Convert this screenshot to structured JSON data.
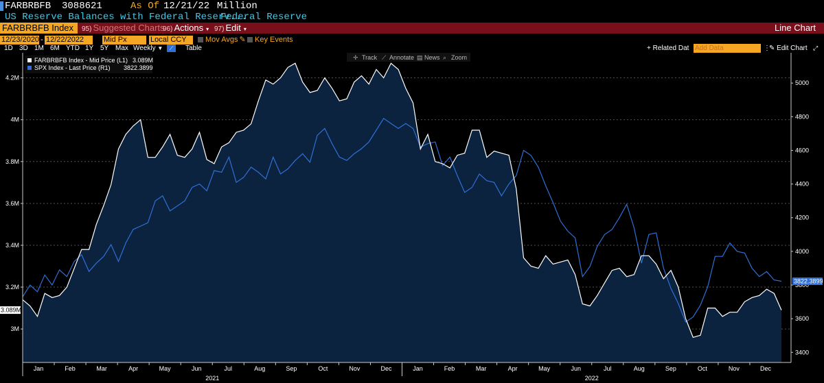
{
  "header": {
    "ticker": "FARBRBFB",
    "last_value": "3088621",
    "as_of_label": "As Of",
    "as_of_date": "12/21/22",
    "unit": "Million",
    "description": "US Reserve Balances with Federal Reserv...",
    "source": "Federal Reserve"
  },
  "toolbar": {
    "security": "FARBRBFB Index",
    "suggested_num": "95)",
    "suggested_label": "Suggested Charts",
    "actions_num": "96)",
    "actions_label": "Actions",
    "edit_num": "97)",
    "edit_label": "Edit",
    "chart_type": "Line Chart"
  },
  "settings": {
    "start_date": "12/23/2020",
    "end_date": "12/22/2022",
    "price_field": "Mid Px",
    "currency": "Local CCY",
    "mov_avgs": "Mov Avgs",
    "key_events": "Key Events"
  },
  "ranges": {
    "items": [
      "1D",
      "3D",
      "1M",
      "6M",
      "YTD",
      "1Y",
      "5Y",
      "Max"
    ],
    "period": "Weekly",
    "table": "Table",
    "related_data": "+ Related Dat",
    "add_data_placeholder": "Add Data",
    "edit_chart": "Edit Chart"
  },
  "chart_tools": {
    "track": "Track",
    "annotate": "Annotate",
    "news": "News",
    "zoom": "Zoom"
  },
  "colors": {
    "series1": "#ffffff",
    "series2": "#2f6fd6",
    "area_fill": "#0c2340",
    "redbar": "#7a0f1c",
    "orange": "#f5a623"
  },
  "chart_data": {
    "type": "line",
    "title": "US Reserve Balances with Federal Reserve",
    "x_range": [
      "2020-12-23",
      "2022-12-22"
    ],
    "x_month_labels": [
      "Jan",
      "Feb",
      "Mar",
      "Apr",
      "May",
      "Jun",
      "Jul",
      "Aug",
      "Sep",
      "Oct",
      "Nov",
      "Dec",
      "Jan",
      "Feb",
      "Mar",
      "Apr",
      "May",
      "Jun",
      "Jul",
      "Aug",
      "Sep",
      "Oct",
      "Nov",
      "Dec"
    ],
    "x_year_labels": [
      "2021",
      "2022"
    ],
    "left_axis": {
      "ticks": [
        "3M",
        "3.2M",
        "3.4M",
        "3.6M",
        "3.8M",
        "4M",
        "4.2M"
      ],
      "tick_values": [
        3.0,
        3.2,
        3.4,
        3.6,
        3.8,
        4.0,
        4.2
      ],
      "ylim": [
        2.84,
        4.32
      ]
    },
    "right_axis": {
      "ticks": [
        "3400",
        "3600",
        "3800",
        "4000",
        "4200",
        "4400",
        "4600",
        "4800",
        "5000"
      ],
      "tick_values": [
        3400,
        3600,
        3800,
        4000,
        4200,
        4400,
        4600,
        4800,
        5000
      ],
      "ylim": [
        3340,
        5180
      ]
    },
    "series": [
      {
        "name": "FARBRBFB Index - Mid Price (L1)",
        "last": "3.089M",
        "axis": "left",
        "values": [
          3.14,
          3.11,
          3.06,
          3.17,
          3.15,
          3.16,
          3.2,
          3.29,
          3.38,
          3.38,
          3.5,
          3.59,
          3.69,
          3.86,
          3.93,
          3.97,
          4.0,
          3.82,
          3.82,
          3.87,
          3.93,
          3.83,
          3.82,
          3.86,
          3.94,
          3.81,
          3.79,
          3.87,
          3.89,
          3.94,
          3.95,
          3.98,
          4.09,
          4.19,
          4.17,
          4.2,
          4.25,
          4.27,
          4.18,
          4.13,
          4.14,
          4.2,
          4.15,
          4.09,
          4.1,
          4.18,
          4.21,
          4.17,
          4.24,
          4.2,
          4.27,
          4.24,
          4.15,
          4.08,
          3.86,
          3.93,
          3.8,
          3.79,
          3.77,
          3.83,
          3.84,
          3.95,
          3.95,
          3.82,
          3.85,
          3.84,
          3.83,
          3.67,
          3.34,
          3.3,
          3.29,
          3.35,
          3.31,
          3.32,
          3.33,
          3.26,
          3.12,
          3.11,
          3.16,
          3.22,
          3.28,
          3.29,
          3.25,
          3.26,
          3.35,
          3.35,
          3.31,
          3.24,
          3.28,
          3.2,
          3.05,
          2.96,
          2.97,
          3.1,
          3.1,
          3.06,
          3.08,
          3.08,
          3.13,
          3.15,
          3.16,
          3.19,
          3.17,
          3.09
        ]
      },
      {
        "name": "SPX Index - Last Price (R1)",
        "last": "3822.3899",
        "axis": "right",
        "values": [
          3730,
          3800,
          3760,
          3860,
          3800,
          3890,
          3850,
          3940,
          3980,
          3880,
          3930,
          3970,
          4040,
          3940,
          4050,
          4130,
          4150,
          4170,
          4300,
          4330,
          4240,
          4270,
          4300,
          4380,
          4400,
          4360,
          4480,
          4470,
          4560,
          4410,
          4440,
          4500,
          4470,
          4430,
          4560,
          4460,
          4490,
          4540,
          4580,
          4530,
          4690,
          4730,
          4640,
          4560,
          4540,
          4580,
          4610,
          4650,
          4720,
          4790,
          4760,
          4730,
          4760,
          4730,
          4620,
          4640,
          4650,
          4510,
          4560,
          4450,
          4350,
          4380,
          4460,
          4420,
          4410,
          4330,
          4400,
          4450,
          4600,
          4570,
          4500,
          4390,
          4290,
          4180,
          4120,
          4080,
          3850,
          3910,
          4030,
          4100,
          4130,
          4200,
          4280,
          4140,
          3930,
          4100,
          4110,
          3900,
          3780,
          3690,
          3580,
          3610,
          3680,
          3790,
          3970,
          3970,
          4050,
          4000,
          3990,
          3900,
          3850,
          3880,
          3830,
          3822.39
        ]
      }
    ]
  }
}
